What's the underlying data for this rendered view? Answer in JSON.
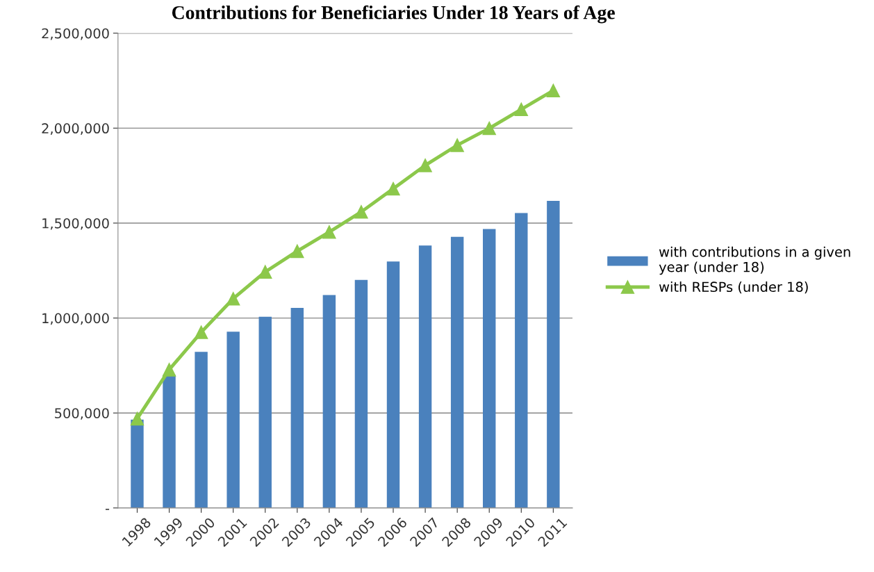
{
  "chart_data": {
    "type": "bar",
    "title": "Contributions for Beneficiaries Under 18 Years of Age",
    "categories": [
      "1998",
      "1999",
      "2000",
      "2001",
      "2002",
      "2003",
      "2004",
      "2005",
      "2006",
      "2007",
      "2008",
      "2009",
      "2010",
      "2011"
    ],
    "series": [
      {
        "name": "with contributions in a given year (under 18)",
        "color": "#4a81bd",
        "values": [
          465000,
          700000,
          822000,
          928000,
          1007000,
          1053000,
          1121000,
          1201000,
          1298000,
          1382000,
          1428000,
          1469000,
          1553000,
          1617000
        ]
      },
      {
        "name": "with RESPs (under 18)",
        "type": "line",
        "color": "#8cc84b",
        "marker": "triangle",
        "values": [
          470000,
          728000,
          925000,
          1102000,
          1243000,
          1352000,
          1453000,
          1559000,
          1681000,
          1804000,
          1910000,
          1999000,
          2099000,
          2198000
        ]
      }
    ],
    "ylim": [
      0,
      2500000
    ],
    "yticks": [
      {
        "value": 0,
        "label": "-"
      },
      {
        "value": 500000,
        "label": "500,000"
      },
      {
        "value": 1000000,
        "label": "1,000,000"
      },
      {
        "value": 1500000,
        "label": "1,500,000"
      },
      {
        "value": 2000000,
        "label": "2,000,000"
      },
      {
        "value": 2500000,
        "label": "2,500,000"
      }
    ],
    "grid": "y",
    "legend": "right"
  }
}
